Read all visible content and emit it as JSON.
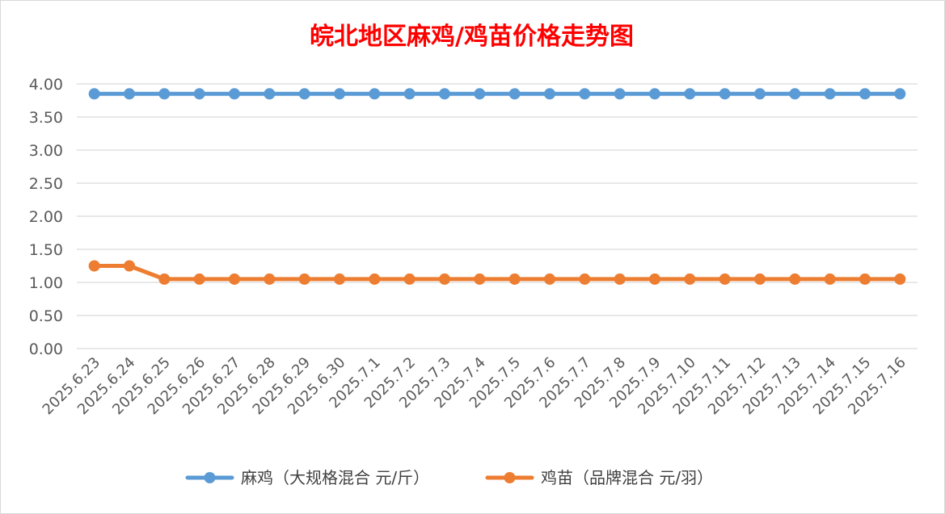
{
  "chart_data": {
    "type": "line",
    "title": "皖北地区麻鸡/鸡苗价格走势图",
    "xlabel": "",
    "ylabel": "",
    "ylim": [
      0,
      4
    ],
    "yticks": [
      "0.00",
      "0.50",
      "1.00",
      "1.50",
      "2.00",
      "2.50",
      "3.00",
      "3.50",
      "4.00"
    ],
    "grid": true,
    "legend_position": "bottom",
    "categories": [
      "2025.6.23",
      "2025.6.24",
      "2025.6.25",
      "2025.6.26",
      "2025.6.27",
      "2025.6.28",
      "2025.6.29",
      "2025.6.30",
      "2025.7.1",
      "2025.7.2",
      "2025.7.3",
      "2025.7.4",
      "2025.7.5",
      "2025.7.6",
      "2025.7.7",
      "2025.7.8",
      "2025.7.9",
      "2025.7.10",
      "2025.7.11",
      "2025.7.12",
      "2025.7.13",
      "2025.7.14",
      "2025.7.15",
      "2025.7.16"
    ],
    "series": [
      {
        "name": "麻鸡（大规格混合 元/斤）",
        "color": "#5b9bd5",
        "values": [
          3.85,
          3.85,
          3.85,
          3.85,
          3.85,
          3.85,
          3.85,
          3.85,
          3.85,
          3.85,
          3.85,
          3.85,
          3.85,
          3.85,
          3.85,
          3.85,
          3.85,
          3.85,
          3.85,
          3.85,
          3.85,
          3.85,
          3.85,
          3.85
        ]
      },
      {
        "name": "鸡苗（品牌混合 元/羽）",
        "color": "#ed7d31",
        "values": [
          1.25,
          1.25,
          1.05,
          1.05,
          1.05,
          1.05,
          1.05,
          1.05,
          1.05,
          1.05,
          1.05,
          1.05,
          1.05,
          1.05,
          1.05,
          1.05,
          1.05,
          1.05,
          1.05,
          1.05,
          1.05,
          1.05,
          1.05,
          1.05
        ]
      }
    ]
  }
}
